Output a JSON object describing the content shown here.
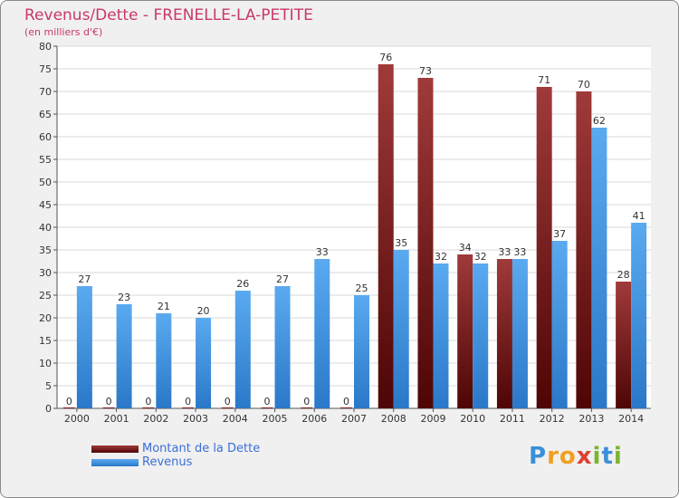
{
  "chart_data": {
    "type": "bar",
    "title": "Revenus/Dette - FRENELLE-LA-PETITE",
    "subtitle": "(en milliers d'€)",
    "categories": [
      "2000",
      "2001",
      "2002",
      "2003",
      "2004",
      "2005",
      "2006",
      "2007",
      "2008",
      "2009",
      "2010",
      "2011",
      "2012",
      "2013",
      "2014"
    ],
    "series": [
      {
        "name": "Montant de la Dette",
        "color": "#7a1a1a",
        "values": [
          0,
          0,
          0,
          0,
          0,
          0,
          0,
          0,
          76,
          73,
          34,
          33,
          71,
          70,
          28
        ]
      },
      {
        "name": "Revenus",
        "color": "#4d9fe0",
        "values": [
          27,
          23,
          21,
          20,
          26,
          27,
          33,
          25,
          35,
          32,
          32,
          33,
          37,
          62,
          41
        ]
      }
    ],
    "ylim": [
      0,
      80
    ],
    "ytick_step": 5,
    "grid": true,
    "legend": "bottom-left",
    "xlabel": "",
    "ylabel": ""
  },
  "logo": {
    "letters": [
      "P",
      "r",
      "o",
      "x",
      "i",
      "t",
      "i"
    ],
    "colors": [
      "#3b8fd8",
      "#f0a020",
      "#f0a020",
      "#e04030",
      "#7ab530",
      "#3b8fd8",
      "#7ab530"
    ]
  }
}
